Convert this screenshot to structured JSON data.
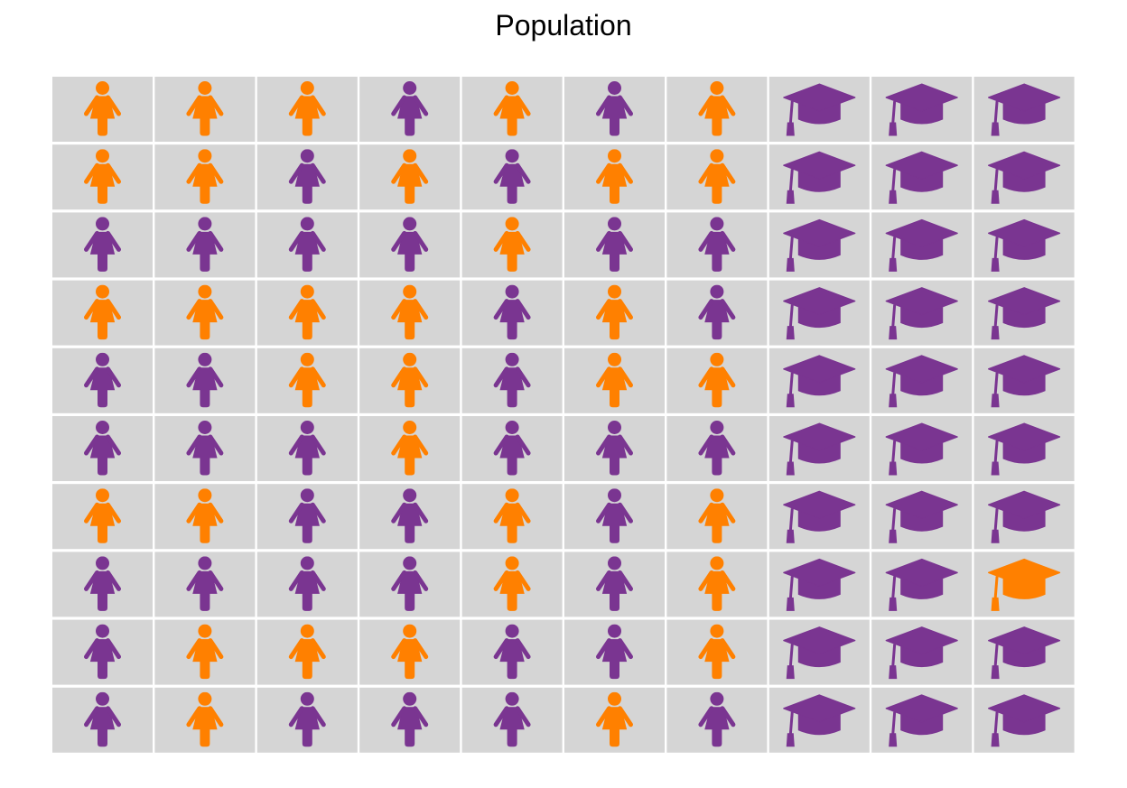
{
  "chart_data": {
    "type": "pictogram",
    "title": "Population",
    "colors": {
      "orange": "#ff8000",
      "purple": "#7a3591",
      "cell_background": "#d5d5d5"
    },
    "icons": [
      "woman-icon",
      "graduation-cap-icon"
    ],
    "grid": [
      [
        "orange",
        "orange",
        "orange",
        "purple",
        "orange",
        "purple",
        "orange",
        "purple",
        "purple",
        "purple"
      ],
      [
        "orange",
        "orange",
        "purple",
        "orange",
        "purple",
        "orange",
        "orange",
        "purple",
        "purple",
        "purple"
      ],
      [
        "purple",
        "purple",
        "purple",
        "purple",
        "orange",
        "purple",
        "purple",
        "purple",
        "purple",
        "purple"
      ],
      [
        "orange",
        "orange",
        "orange",
        "orange",
        "purple",
        "orange",
        "purple",
        "purple",
        "purple",
        "purple"
      ],
      [
        "purple",
        "purple",
        "orange",
        "orange",
        "purple",
        "orange",
        "orange",
        "purple",
        "purple",
        "purple"
      ],
      [
        "purple",
        "purple",
        "purple",
        "orange",
        "purple",
        "purple",
        "purple",
        "purple",
        "purple",
        "purple"
      ],
      [
        "orange",
        "orange",
        "purple",
        "purple",
        "orange",
        "purple",
        "orange",
        "purple",
        "purple",
        "purple"
      ],
      [
        "purple",
        "purple",
        "purple",
        "purple",
        "orange",
        "purple",
        "orange",
        "purple",
        "purple",
        "orange"
      ],
      [
        "purple",
        "orange",
        "orange",
        "orange",
        "purple",
        "purple",
        "orange",
        "purple",
        "purple",
        "purple"
      ],
      [
        "purple",
        "orange",
        "purple",
        "purple",
        "purple",
        "orange",
        "purple",
        "purple",
        "purple",
        "purple"
      ]
    ],
    "icon_columns": [
      "woman-icon",
      "woman-icon",
      "woman-icon",
      "woman-icon",
      "woman-icon",
      "woman-icon",
      "woman-icon",
      "graduation-cap-icon",
      "graduation-cap-icon",
      "graduation-cap-icon"
    ]
  }
}
